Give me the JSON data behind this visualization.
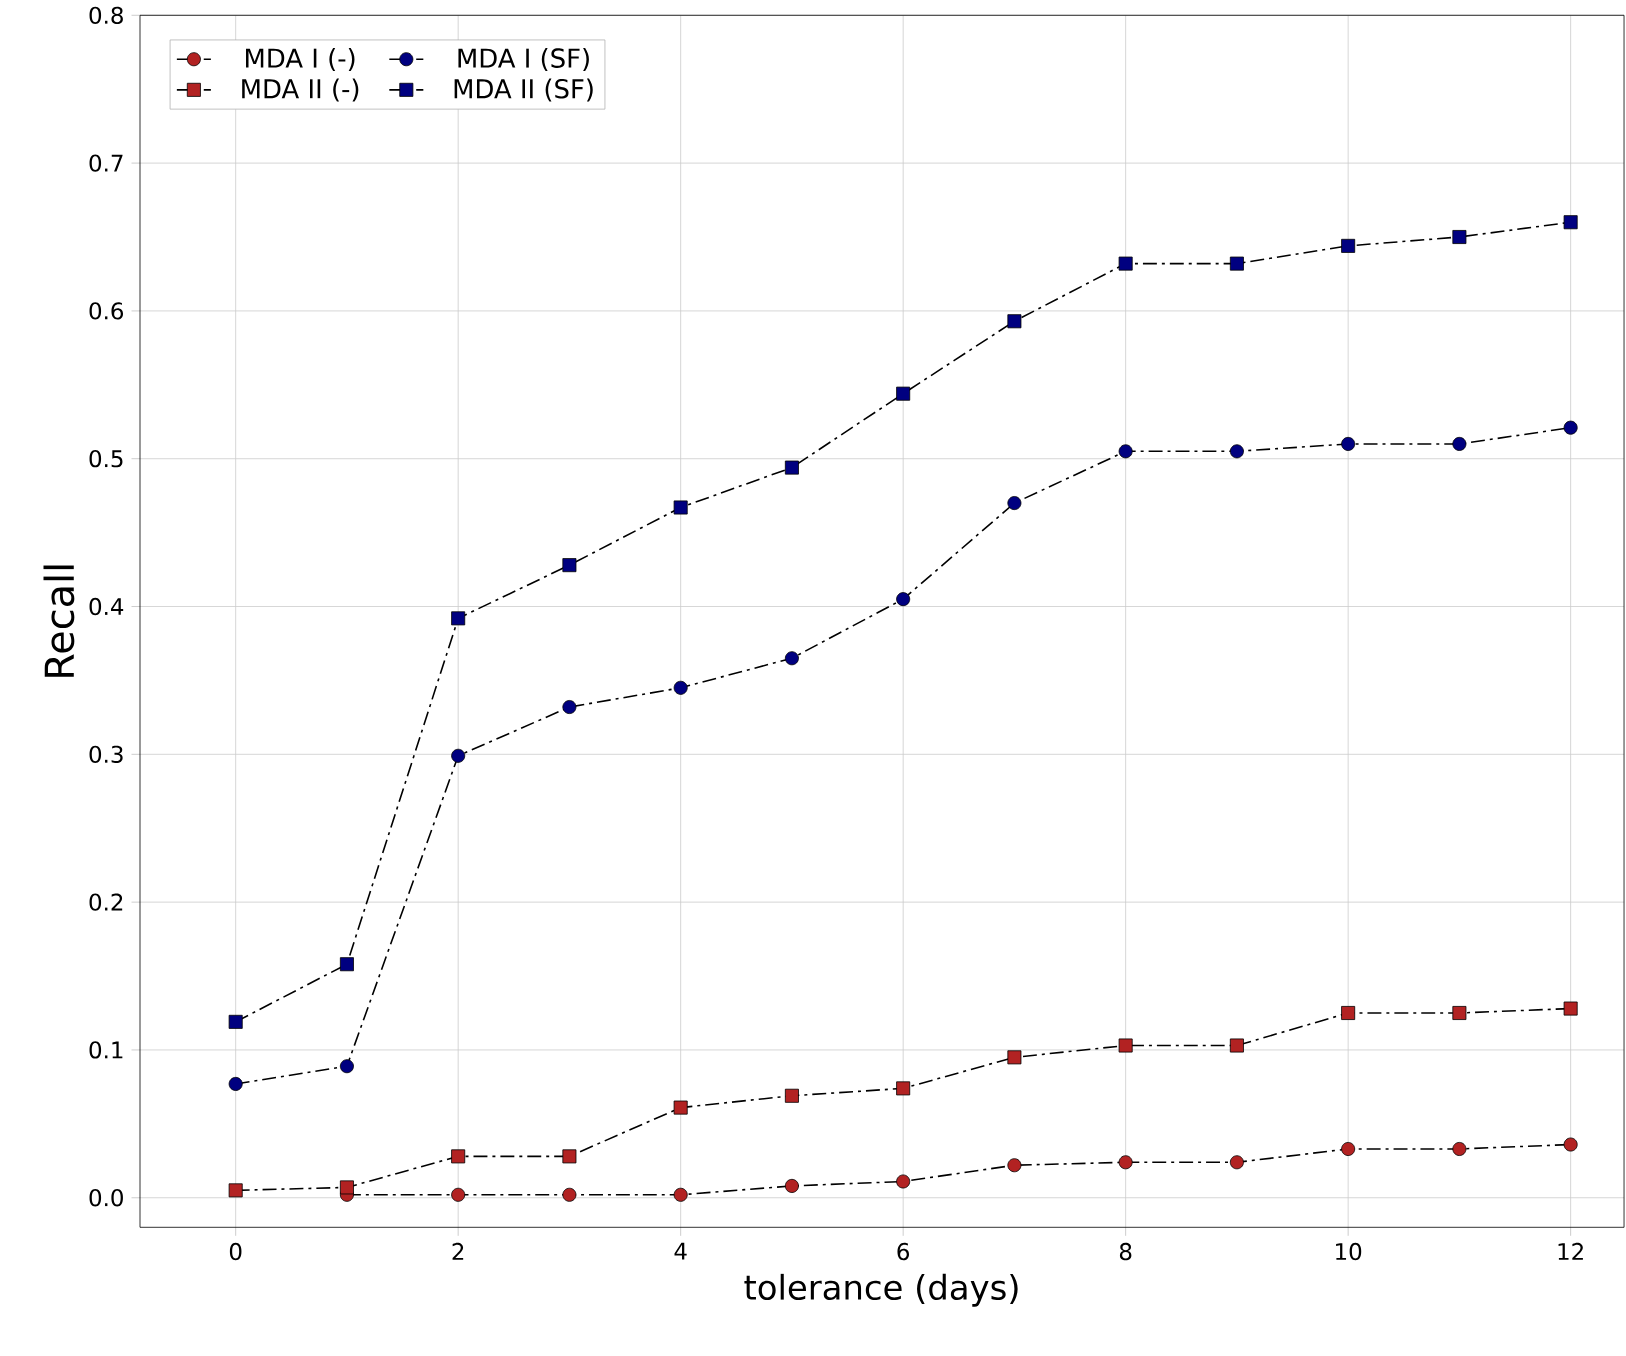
{
  "chart_data": {
    "type": "line",
    "xlabel": "tolerance (days)",
    "ylabel": "Recall",
    "x": [
      0,
      1,
      2,
      3,
      4,
      5,
      6,
      7,
      8,
      9,
      10,
      11,
      12
    ],
    "series": [
      {
        "name": "MDA I (-)",
        "color": "#b22222",
        "marker": "circle",
        "values": [
          null,
          0.002,
          0.002,
          0.002,
          0.002,
          0.008,
          0.011,
          0.022,
          0.024,
          0.024,
          0.033,
          0.033,
          0.036
        ]
      },
      {
        "name": "MDA I (SF)",
        "color": "#000080",
        "marker": "circle",
        "values": [
          0.077,
          0.089,
          0.299,
          0.332,
          0.345,
          0.365,
          0.405,
          0.47,
          0.505,
          0.505,
          0.51,
          0.51,
          0.521
        ]
      },
      {
        "name": "MDA II (-)",
        "color": "#b22222",
        "marker": "square",
        "values": [
          0.005,
          0.007,
          0.028,
          0.028,
          0.061,
          0.069,
          0.074,
          0.095,
          0.103,
          0.103,
          0.125,
          0.125,
          0.128
        ]
      },
      {
        "name": "MDA II (SF)",
        "color": "#000080",
        "marker": "square",
        "values": [
          0.119,
          0.158,
          0.392,
          0.428,
          0.467,
          0.494,
          0.544,
          0.593,
          0.632,
          0.632,
          0.644,
          0.65,
          0.66
        ]
      }
    ],
    "xlim": [
      -0.86,
      12.48
    ],
    "ylim": [
      -0.02,
      0.8
    ],
    "xticks": [
      0,
      2,
      4,
      6,
      8,
      10,
      12
    ],
    "yticks": [
      {
        "value": 0,
        "label": "0.0"
      },
      0.1,
      0.2,
      0.3,
      0.4,
      0.5,
      0.6,
      0.7,
      0.8
    ],
    "grid": true,
    "legend": "top left",
    "line_style": "dashdot"
  }
}
